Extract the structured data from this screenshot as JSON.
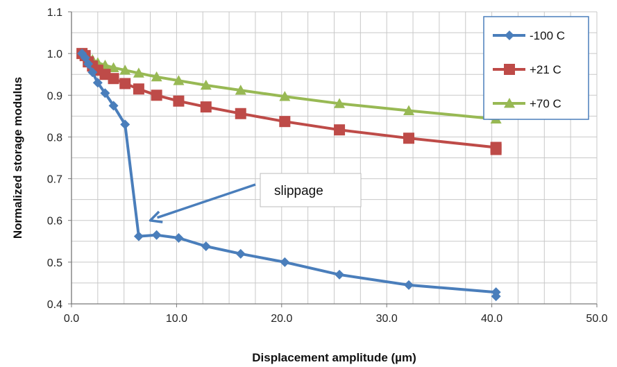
{
  "chart_data": {
    "type": "line",
    "xlabel": "Displacement amplitude (µm)",
    "ylabel": "Normalized storage modulus",
    "xlim": [
      0,
      50
    ],
    "ylim": [
      0.4,
      1.1
    ],
    "x_ticks": [
      "0.0",
      "10.0",
      "20.0",
      "30.0",
      "40.0",
      "50.0"
    ],
    "y_ticks": [
      "0.4",
      "0.5",
      "0.6",
      "0.7",
      "0.8",
      "0.9",
      "1.0",
      "1.1"
    ],
    "grid": true,
    "legend_position": "top-right",
    "series": [
      {
        "name": "-100 C",
        "color": "#4a7ebb",
        "marker": "diamond",
        "x": [
          1.0,
          1.3,
          1.6,
          2.0,
          2.5,
          3.2,
          4.0,
          5.1,
          6.4,
          8.1,
          10.2,
          12.8,
          16.1,
          20.3,
          25.5,
          32.1,
          40.4,
          40.4
        ],
        "y": [
          1.0,
          0.99,
          0.975,
          0.955,
          0.93,
          0.905,
          0.875,
          0.83,
          0.562,
          0.565,
          0.558,
          0.538,
          0.52,
          0.5,
          0.47,
          0.445,
          0.428,
          0.418
        ]
      },
      {
        "name": "+21 C",
        "color": "#be4b48",
        "marker": "square",
        "x": [
          1.0,
          1.3,
          1.6,
          2.0,
          2.5,
          3.2,
          4.0,
          5.1,
          6.4,
          8.1,
          10.2,
          12.8,
          16.1,
          20.3,
          25.5,
          32.1,
          40.4,
          40.4
        ],
        "y": [
          1.0,
          0.995,
          0.98,
          0.97,
          0.96,
          0.95,
          0.94,
          0.928,
          0.915,
          0.9,
          0.886,
          0.872,
          0.856,
          0.837,
          0.817,
          0.797,
          0.775,
          0.77
        ]
      },
      {
        "name": "+70 C",
        "color": "#98b954",
        "marker": "triangle",
        "x": [
          1.0,
          1.3,
          1.6,
          2.0,
          2.5,
          3.2,
          4.0,
          5.1,
          6.4,
          8.1,
          10.2,
          12.8,
          16.1,
          20.3,
          25.5,
          32.1,
          40.4
        ],
        "y": [
          1.0,
          0.995,
          0.99,
          0.985,
          0.978,
          0.972,
          0.966,
          0.96,
          0.953,
          0.944,
          0.935,
          0.924,
          0.912,
          0.897,
          0.88,
          0.863,
          0.843
        ]
      }
    ],
    "annotations": [
      {
        "text": "slippage",
        "arrow_to": {
          "x": 7.5,
          "y": 0.6
        }
      }
    ]
  }
}
